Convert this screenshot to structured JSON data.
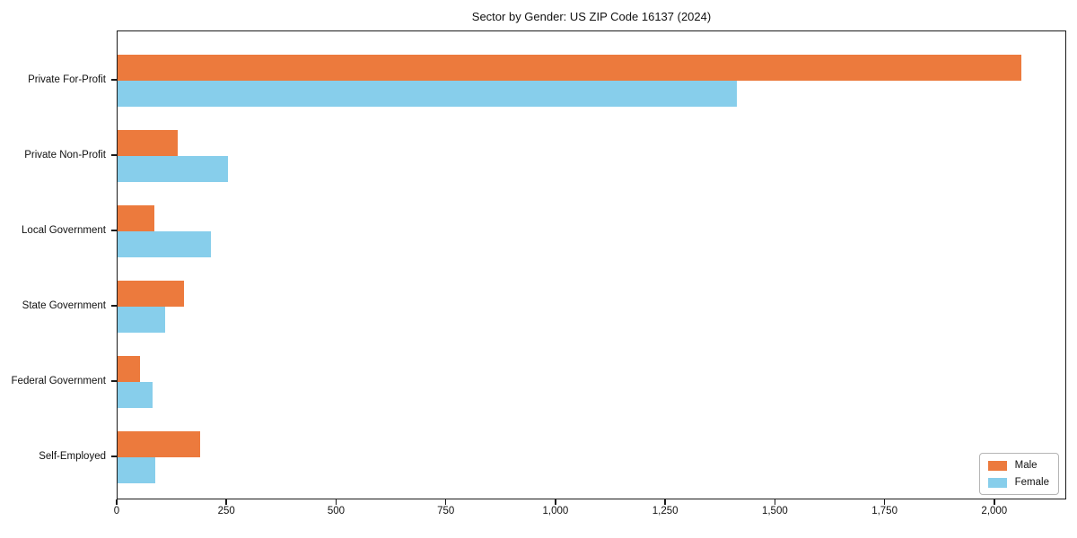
{
  "chart_data": {
    "type": "bar",
    "orientation": "horizontal",
    "title": "Sector by Gender: US ZIP Code 16137 (2024)",
    "xlabel": "",
    "ylabel": "",
    "grid": false,
    "background_color": "#ffffff",
    "text_color": "#111111",
    "categories": [
      "Private For-Profit",
      "Private Non-Profit",
      "Local Government",
      "State Government",
      "Federal Government",
      "Self-Employed"
    ],
    "series": [
      {
        "name": "Male",
        "color": "#ec7a3d",
        "values": [
          2060,
          137,
          84,
          152,
          51,
          189
        ]
      },
      {
        "name": "Female",
        "color": "#87ceeb",
        "values": [
          1412,
          252,
          213,
          109,
          80,
          86
        ]
      }
    ],
    "xlim": [
      0,
      2164
    ],
    "x_ticks": [
      {
        "value": 0,
        "label": "0"
      },
      {
        "value": 250,
        "label": "250"
      },
      {
        "value": 500,
        "label": "500"
      },
      {
        "value": 750,
        "label": "750"
      },
      {
        "value": 1000,
        "label": "1,000"
      },
      {
        "value": 1250,
        "label": "1,250"
      },
      {
        "value": 1500,
        "label": "1,500"
      },
      {
        "value": 1750,
        "label": "1,750"
      },
      {
        "value": 2000,
        "label": "2,000"
      }
    ],
    "legend": {
      "position": "lower right",
      "entries": [
        "Male",
        "Female"
      ]
    }
  }
}
